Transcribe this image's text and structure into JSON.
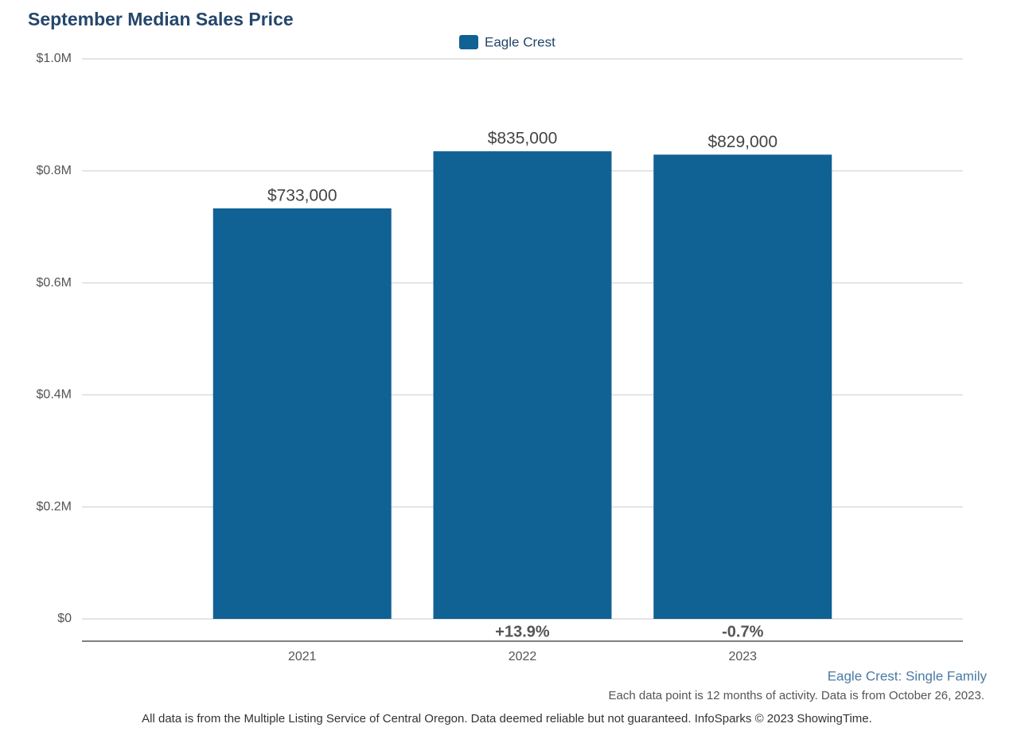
{
  "chart_data": {
    "type": "bar",
    "title": "September Median Sales Price",
    "categories": [
      "2021",
      "2022",
      "2023"
    ],
    "series": [
      {
        "name": "Eagle Crest",
        "color": "#106194",
        "values": [
          733000,
          835000,
          829000
        ],
        "value_labels": [
          "$733,000",
          "$835,000",
          "$829,000"
        ]
      }
    ],
    "change_labels": [
      null,
      "+13.9%",
      "-0.7%"
    ],
    "ylim": [
      0,
      1000000
    ],
    "yticks": [
      {
        "value": 0,
        "label": "$0"
      },
      {
        "value": 200000,
        "label": "$0.2M"
      },
      {
        "value": 400000,
        "label": "$0.4M"
      },
      {
        "value": 600000,
        "label": "$0.6M"
      },
      {
        "value": 800000,
        "label": "$0.8M"
      },
      {
        "value": 1000000,
        "label": "$1.0M"
      }
    ],
    "grid": true,
    "legend_position": "top",
    "subtitle": "Eagle Crest: Single Family",
    "note": "Each data point is 12 months of activity. Data is from October 26, 2023.",
    "source": "All data is from the Multiple Listing Service of Central Oregon. Data deemed reliable but not guaranteed. InfoSparks © 2023 ShowingTime."
  }
}
